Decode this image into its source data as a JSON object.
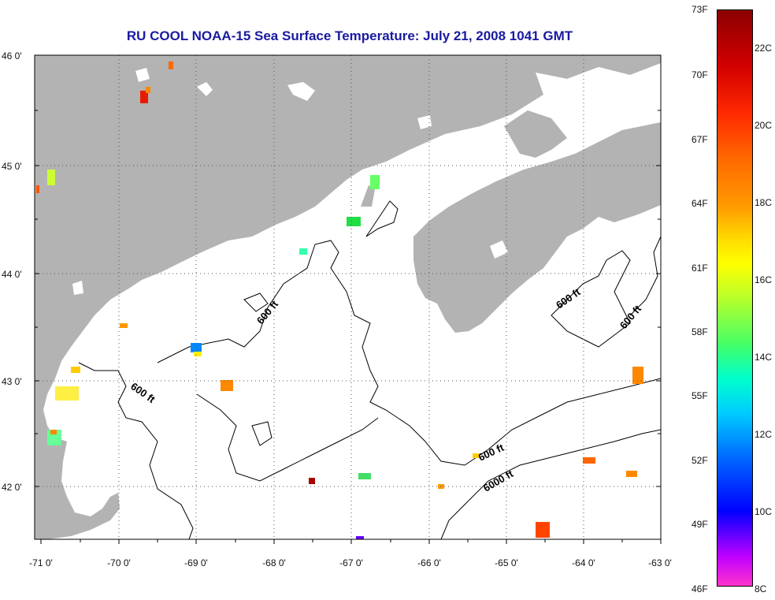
{
  "title": "RU COOL  NOAA-15  Sea Surface Temperature:  July 21, 2008 1041 GMT",
  "lat_labels": [
    "46 0'",
    "45 0'",
    "44 0'",
    "43 0'",
    "42 0'"
  ],
  "lon_labels": [
    "-71 0'",
    "-70 0'",
    "-69 0'",
    "-68 0'",
    "-67 0'",
    "-66 0'",
    "-65 0'",
    "-64 0'",
    "-63 0'"
  ],
  "contour_labels": [
    "600 ft",
    "600 ft",
    "600 ft",
    "600 ft",
    "600 ft",
    "6000 ft"
  ],
  "colorbar": {
    "fahrenheit": [
      "73F",
      "70F",
      "67F",
      "64F",
      "61F",
      "58F",
      "55F",
      "52F",
      "49F",
      "46F"
    ],
    "celsius": [
      "22C",
      "20C",
      "18C",
      "16C",
      "14C",
      "12C",
      "10C",
      "8C"
    ]
  },
  "colors": {
    "land": "#b3b3b3",
    "title": "#1a1aa0",
    "contour": "#000000"
  }
}
